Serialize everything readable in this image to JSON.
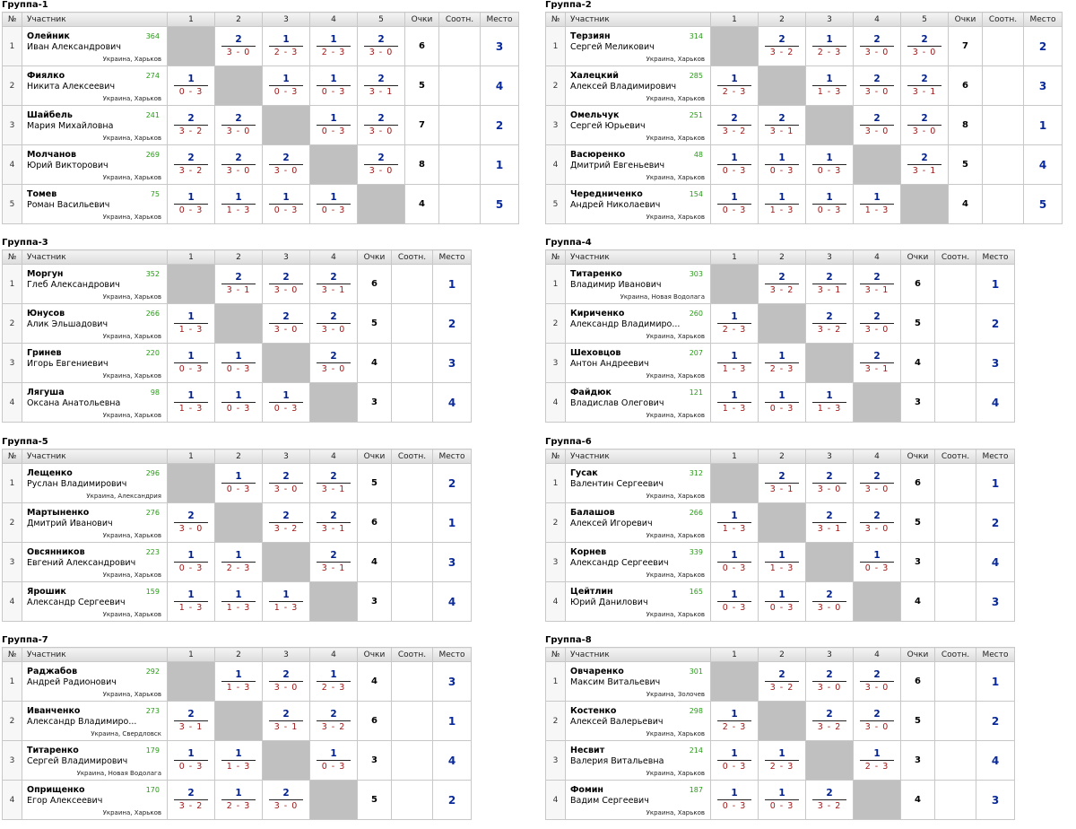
{
  "headers": {
    "no": "№",
    "participant": "Участник",
    "points": "Очки",
    "ratio": "Соотн.",
    "place": "Место"
  },
  "groups": [
    {
      "title": "Группа-1",
      "cols": [
        "1",
        "2",
        "3",
        "4",
        "5"
      ],
      "rows": [
        {
          "no": "1",
          "surname": "Олейник",
          "first": "Иван Александрович",
          "rating": "364",
          "city": "Украина, Харьков",
          "results": [
            null,
            {
              "v": "2",
              "s": "3 - 0"
            },
            {
              "v": "1",
              "s": "2 - 3"
            },
            {
              "v": "1",
              "s": "2 - 3"
            },
            {
              "v": "2",
              "s": "3 - 0"
            }
          ],
          "points": "6",
          "place": "3"
        },
        {
          "no": "2",
          "surname": "Фиялко",
          "first": "Никита Алексеевич",
          "rating": "274",
          "city": "Украина, Харьков",
          "results": [
            {
              "v": "1",
              "s": "0 - 3"
            },
            null,
            {
              "v": "1",
              "s": "0 - 3"
            },
            {
              "v": "1",
              "s": "0 - 3"
            },
            {
              "v": "2",
              "s": "3 - 1"
            }
          ],
          "points": "5",
          "place": "4"
        },
        {
          "no": "3",
          "surname": "Шайбель",
          "first": "Мария Михайловна",
          "rating": "241",
          "city": "Украина, Харьков",
          "results": [
            {
              "v": "2",
              "s": "3 - 2"
            },
            {
              "v": "2",
              "s": "3 - 0"
            },
            null,
            {
              "v": "1",
              "s": "0 - 3"
            },
            {
              "v": "2",
              "s": "3 - 0"
            }
          ],
          "points": "7",
          "place": "2"
        },
        {
          "no": "4",
          "surname": "Молчанов",
          "first": "Юрий Викторович",
          "rating": "269",
          "city": "Украина, Харьков",
          "results": [
            {
              "v": "2",
              "s": "3 - 2"
            },
            {
              "v": "2",
              "s": "3 - 0"
            },
            {
              "v": "2",
              "s": "3 - 0"
            },
            null,
            {
              "v": "2",
              "s": "3 - 0"
            }
          ],
          "points": "8",
          "place": "1"
        },
        {
          "no": "5",
          "surname": "Томев",
          "first": "Роман Васильевич",
          "rating": "75",
          "city": "Украина, Харьков",
          "results": [
            {
              "v": "1",
              "s": "0 - 3"
            },
            {
              "v": "1",
              "s": "1 - 3"
            },
            {
              "v": "1",
              "s": "0 - 3"
            },
            {
              "v": "1",
              "s": "0 - 3"
            },
            null
          ],
          "points": "4",
          "place": "5"
        }
      ]
    },
    {
      "title": "Группа-2",
      "cols": [
        "1",
        "2",
        "3",
        "4",
        "5"
      ],
      "rows": [
        {
          "no": "1",
          "surname": "Терзиян",
          "first": "Сергей Меликович",
          "rating": "314",
          "city": "Украина, Харьков",
          "results": [
            null,
            {
              "v": "2",
              "s": "3 - 2"
            },
            {
              "v": "1",
              "s": "2 - 3"
            },
            {
              "v": "2",
              "s": "3 - 0"
            },
            {
              "v": "2",
              "s": "3 - 0"
            }
          ],
          "points": "7",
          "place": "2"
        },
        {
          "no": "2",
          "surname": "Халецкий",
          "first": "Алексей Владимирович",
          "rating": "285",
          "city": "Украина, Харьков",
          "results": [
            {
              "v": "1",
              "s": "2 - 3"
            },
            null,
            {
              "v": "1",
              "s": "1 - 3"
            },
            {
              "v": "2",
              "s": "3 - 0"
            },
            {
              "v": "2",
              "s": "3 - 1"
            }
          ],
          "points": "6",
          "place": "3"
        },
        {
          "no": "3",
          "surname": "Омельчук",
          "first": "Сергей Юрьевич",
          "rating": "251",
          "city": "Украина, Харьков",
          "results": [
            {
              "v": "2",
              "s": "3 - 2"
            },
            {
              "v": "2",
              "s": "3 - 1"
            },
            null,
            {
              "v": "2",
              "s": "3 - 0"
            },
            {
              "v": "2",
              "s": "3 - 0"
            }
          ],
          "points": "8",
          "place": "1"
        },
        {
          "no": "4",
          "surname": "Васюренко",
          "first": "Дмитрий Евгеньевич",
          "rating": "48",
          "city": "Украина, Харьков",
          "results": [
            {
              "v": "1",
              "s": "0 - 3"
            },
            {
              "v": "1",
              "s": "0 - 3"
            },
            {
              "v": "1",
              "s": "0 - 3"
            },
            null,
            {
              "v": "2",
              "s": "3 - 1"
            }
          ],
          "points": "5",
          "place": "4"
        },
        {
          "no": "5",
          "surname": "Чередниченко",
          "first": "Андрей Николаевич",
          "rating": "154",
          "city": "Украина, Харьков",
          "results": [
            {
              "v": "1",
              "s": "0 - 3"
            },
            {
              "v": "1",
              "s": "1 - 3"
            },
            {
              "v": "1",
              "s": "0 - 3"
            },
            {
              "v": "1",
              "s": "1 - 3"
            },
            null
          ],
          "points": "4",
          "place": "5"
        }
      ]
    },
    {
      "title": "Группа-3",
      "cols": [
        "1",
        "2",
        "3",
        "4"
      ],
      "rows": [
        {
          "no": "1",
          "surname": "Моргун",
          "first": "Глеб Александрович",
          "rating": "352",
          "city": "Украина, Харьков",
          "results": [
            null,
            {
              "v": "2",
              "s": "3 - 1"
            },
            {
              "v": "2",
              "s": "3 - 0"
            },
            {
              "v": "2",
              "s": "3 - 1"
            }
          ],
          "points": "6",
          "place": "1"
        },
        {
          "no": "2",
          "surname": "Юнусов",
          "first": "Алик Эльшадович",
          "rating": "266",
          "city": "Украина, Харьков",
          "results": [
            {
              "v": "1",
              "s": "1 - 3"
            },
            null,
            {
              "v": "2",
              "s": "3 - 0"
            },
            {
              "v": "2",
              "s": "3 - 0"
            }
          ],
          "points": "5",
          "place": "2"
        },
        {
          "no": "3",
          "surname": "Гринев",
          "first": "Игорь Евгениевич",
          "rating": "220",
          "city": "Украина, Харьков",
          "results": [
            {
              "v": "1",
              "s": "0 - 3"
            },
            {
              "v": "1",
              "s": "0 - 3"
            },
            null,
            {
              "v": "2",
              "s": "3 - 0"
            }
          ],
          "points": "4",
          "place": "3"
        },
        {
          "no": "4",
          "surname": "Лягуша",
          "first": "Оксана Анатольевна",
          "rating": "98",
          "city": "Украина, Харьков",
          "results": [
            {
              "v": "1",
              "s": "1 - 3"
            },
            {
              "v": "1",
              "s": "0 - 3"
            },
            {
              "v": "1",
              "s": "0 - 3"
            },
            null
          ],
          "points": "3",
          "place": "4"
        }
      ]
    },
    {
      "title": "Группа-4",
      "cols": [
        "1",
        "2",
        "3",
        "4"
      ],
      "rows": [
        {
          "no": "1",
          "surname": "Титаренко",
          "first": "Владимир Иванович",
          "rating": "303",
          "city": "Украина, Новая Водолага",
          "results": [
            null,
            {
              "v": "2",
              "s": "3 - 2"
            },
            {
              "v": "2",
              "s": "3 - 1"
            },
            {
              "v": "2",
              "s": "3 - 1"
            }
          ],
          "points": "6",
          "place": "1"
        },
        {
          "no": "2",
          "surname": "Кириченко",
          "first": "Александр Владимиро...",
          "rating": "260",
          "city": "Украина, Харьков",
          "results": [
            {
              "v": "1",
              "s": "2 - 3"
            },
            null,
            {
              "v": "2",
              "s": "3 - 2"
            },
            {
              "v": "2",
              "s": "3 - 0"
            }
          ],
          "points": "5",
          "place": "2"
        },
        {
          "no": "3",
          "surname": "Шеховцов",
          "first": "Антон Андреевич",
          "rating": "207",
          "city": "Украина, Харьков",
          "results": [
            {
              "v": "1",
              "s": "1 - 3"
            },
            {
              "v": "1",
              "s": "2 - 3"
            },
            null,
            {
              "v": "2",
              "s": "3 - 1"
            }
          ],
          "points": "4",
          "place": "3"
        },
        {
          "no": "4",
          "surname": "Файдюк",
          "first": "Владислав Олегович",
          "rating": "121",
          "city": "Украина, Харьков",
          "results": [
            {
              "v": "1",
              "s": "1 - 3"
            },
            {
              "v": "1",
              "s": "0 - 3"
            },
            {
              "v": "1",
              "s": "1 - 3"
            },
            null
          ],
          "points": "3",
          "place": "4"
        }
      ]
    },
    {
      "title": "Группа-5",
      "cols": [
        "1",
        "2",
        "3",
        "4"
      ],
      "rows": [
        {
          "no": "1",
          "surname": "Лещенко",
          "first": "Руслан Владимирович",
          "rating": "296",
          "city": "Украина, Александрия",
          "results": [
            null,
            {
              "v": "1",
              "s": "0 - 3"
            },
            {
              "v": "2",
              "s": "3 - 0"
            },
            {
              "v": "2",
              "s": "3 - 1"
            }
          ],
          "points": "5",
          "place": "2"
        },
        {
          "no": "2",
          "surname": "Мартыненко",
          "first": "Дмитрий Иванович",
          "rating": "276",
          "city": "Украина, Харьков",
          "results": [
            {
              "v": "2",
              "s": "3 - 0"
            },
            null,
            {
              "v": "2",
              "s": "3 - 2"
            },
            {
              "v": "2",
              "s": "3 - 1"
            }
          ],
          "points": "6",
          "place": "1"
        },
        {
          "no": "3",
          "surname": "Овсянников",
          "first": "Евгений Александрович",
          "rating": "223",
          "city": "Украина, Харьков",
          "results": [
            {
              "v": "1",
              "s": "0 - 3"
            },
            {
              "v": "1",
              "s": "2 - 3"
            },
            null,
            {
              "v": "2",
              "s": "3 - 1"
            }
          ],
          "points": "4",
          "place": "3"
        },
        {
          "no": "4",
          "surname": "Ярошик",
          "first": "Александр Сергеевич",
          "rating": "159",
          "city": "Украина, Харьков",
          "results": [
            {
              "v": "1",
              "s": "1 - 3"
            },
            {
              "v": "1",
              "s": "1 - 3"
            },
            {
              "v": "1",
              "s": "1 - 3"
            },
            null
          ],
          "points": "3",
          "place": "4"
        }
      ]
    },
    {
      "title": "Группа-6",
      "cols": [
        "1",
        "2",
        "3",
        "4"
      ],
      "rows": [
        {
          "no": "1",
          "surname": "Гусак",
          "first": "Валентин Сергеевич",
          "rating": "312",
          "city": "Украина, Харьков",
          "results": [
            null,
            {
              "v": "2",
              "s": "3 - 1"
            },
            {
              "v": "2",
              "s": "3 - 0"
            },
            {
              "v": "2",
              "s": "3 - 0"
            }
          ],
          "points": "6",
          "place": "1"
        },
        {
          "no": "2",
          "surname": "Балашов",
          "first": "Алексей Игоревич",
          "rating": "266",
          "city": "Украина, Харьков",
          "results": [
            {
              "v": "1",
              "s": "1 - 3"
            },
            null,
            {
              "v": "2",
              "s": "3 - 1"
            },
            {
              "v": "2",
              "s": "3 - 0"
            }
          ],
          "points": "5",
          "place": "2"
        },
        {
          "no": "3",
          "surname": "Корнев",
          "first": "Александр Сергеевич",
          "rating": "339",
          "city": "Украина, Харьков",
          "results": [
            {
              "v": "1",
              "s": "0 - 3"
            },
            {
              "v": "1",
              "s": "1 - 3"
            },
            null,
            {
              "v": "1",
              "s": "0 - 3"
            }
          ],
          "points": "3",
          "place": "4"
        },
        {
          "no": "4",
          "surname": "Цейтлин",
          "first": "Юрий Данилович",
          "rating": "165",
          "city": "Украина, Харьков",
          "results": [
            {
              "v": "1",
              "s": "0 - 3"
            },
            {
              "v": "1",
              "s": "0 - 3"
            },
            {
              "v": "2",
              "s": "3 - 0"
            },
            null
          ],
          "points": "4",
          "place": "3"
        }
      ]
    },
    {
      "title": "Группа-7",
      "cols": [
        "1",
        "2",
        "3",
        "4"
      ],
      "rows": [
        {
          "no": "1",
          "surname": "Раджабов",
          "first": "Андрей Радионович",
          "rating": "292",
          "city": "Украина, Харьков",
          "results": [
            null,
            {
              "v": "1",
              "s": "1 - 3"
            },
            {
              "v": "2",
              "s": "3 - 0"
            },
            {
              "v": "1",
              "s": "2 - 3"
            }
          ],
          "points": "4",
          "place": "3"
        },
        {
          "no": "2",
          "surname": "Иванченко",
          "first": "Александр Владимиро...",
          "rating": "273",
          "city": "Украина, Свердловск",
          "results": [
            {
              "v": "2",
              "s": "3 - 1"
            },
            null,
            {
              "v": "2",
              "s": "3 - 1"
            },
            {
              "v": "2",
              "s": "3 - 2"
            }
          ],
          "points": "6",
          "place": "1"
        },
        {
          "no": "3",
          "surname": "Титаренко",
          "first": "Сергей Владимирович",
          "rating": "179",
          "city": "Украина, Новая Водолага",
          "results": [
            {
              "v": "1",
              "s": "0 - 3"
            },
            {
              "v": "1",
              "s": "1 - 3"
            },
            null,
            {
              "v": "1",
              "s": "0 - 3"
            }
          ],
          "points": "3",
          "place": "4"
        },
        {
          "no": "4",
          "surname": "Оприщенко",
          "first": "Егор Алексеевич",
          "rating": "170",
          "city": "Украина, Харьков",
          "results": [
            {
              "v": "2",
              "s": "3 - 2"
            },
            {
              "v": "1",
              "s": "2 - 3"
            },
            {
              "v": "2",
              "s": "3 - 0"
            },
            null
          ],
          "points": "5",
          "place": "2"
        }
      ]
    },
    {
      "title": "Группа-8",
      "cols": [
        "1",
        "2",
        "3",
        "4"
      ],
      "rows": [
        {
          "no": "1",
          "surname": "Овчаренко",
          "first": "Максим Витальевич",
          "rating": "301",
          "city": "Украина, Золочев",
          "results": [
            null,
            {
              "v": "2",
              "s": "3 - 2"
            },
            {
              "v": "2",
              "s": "3 - 0"
            },
            {
              "v": "2",
              "s": "3 - 0"
            }
          ],
          "points": "6",
          "place": "1"
        },
        {
          "no": "2",
          "surname": "Костенко",
          "first": "Алексей Валерьевич",
          "rating": "298",
          "city": "Украина, Харьков",
          "results": [
            {
              "v": "1",
              "s": "2 - 3"
            },
            null,
            {
              "v": "2",
              "s": "3 - 2"
            },
            {
              "v": "2",
              "s": "3 - 0"
            }
          ],
          "points": "5",
          "place": "2"
        },
        {
          "no": "3",
          "surname": "Несвит",
          "first": "Валерия Витальевна",
          "rating": "214",
          "city": "Украина, Харьков",
          "results": [
            {
              "v": "1",
              "s": "0 - 3"
            },
            {
              "v": "1",
              "s": "2 - 3"
            },
            null,
            {
              "v": "1",
              "s": "2 - 3"
            }
          ],
          "points": "3",
          "place": "4"
        },
        {
          "no": "4",
          "surname": "Фомин",
          "first": "Вадим Сергеевич",
          "rating": "187",
          "city": "Украина, Харьков",
          "results": [
            {
              "v": "1",
              "s": "0 - 3"
            },
            {
              "v": "1",
              "s": "0 - 3"
            },
            {
              "v": "2",
              "s": "3 - 2"
            },
            null
          ],
          "points": "4",
          "place": "3"
        }
      ]
    }
  ]
}
